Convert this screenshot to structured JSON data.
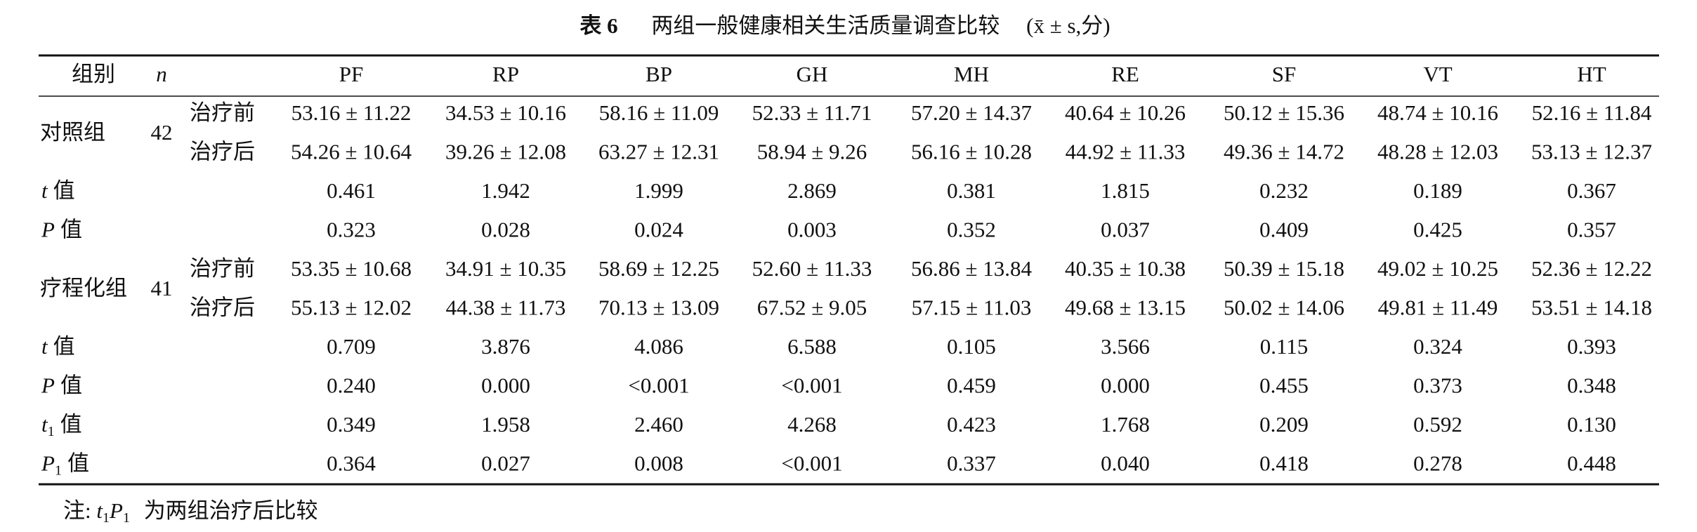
{
  "table": {
    "title": {
      "number": "表 6",
      "text": "两组一般健康相关生活质量调查比较",
      "unit": "(x̄ ± s,分)"
    },
    "header": {
      "group": "组别",
      "n": "n",
      "columns": [
        "PF",
        "RP",
        "BP",
        "GH",
        "MH",
        "RE",
        "SF",
        "VT",
        "HT"
      ]
    },
    "blocks": [
      {
        "group": "对照组",
        "n": 42,
        "rows": [
          {
            "label": "治疗前",
            "values": [
              "53.16 ± 11.22",
              "34.53 ± 10.16",
              "58.16 ± 11.09",
              "52.33 ± 11.71",
              "57.20 ± 14.37",
              "40.64 ± 10.26",
              "50.12 ± 15.36",
              "48.74 ± 10.16",
              "52.16 ± 11.84"
            ]
          },
          {
            "label": "治疗后",
            "values": [
              "54.26 ± 10.64",
              "39.26 ± 12.08",
              "63.27 ± 12.31",
              "58.94 ± 9.26",
              "56.16 ± 10.28",
              "44.92 ± 11.33",
              "49.36 ± 14.72",
              "48.28 ± 12.03",
              "53.13 ± 12.37"
            ]
          }
        ]
      },
      {
        "label": {
          "sym": "t",
          "text": "值"
        },
        "values": [
          "0.461",
          "1.942",
          "1.999",
          "2.869",
          "0.381",
          "1.815",
          "0.232",
          "0.189",
          "0.367"
        ]
      },
      {
        "label": {
          "sym": "P",
          "text": "值"
        },
        "values": [
          "0.323",
          "0.028",
          "0.024",
          "0.003",
          "0.352",
          "0.037",
          "0.409",
          "0.425",
          "0.357"
        ]
      },
      {
        "group": "疗程化组",
        "n": 41,
        "rows": [
          {
            "label": "治疗前",
            "values": [
              "53.35 ± 10.68",
              "34.91 ± 10.35",
              "58.69 ± 12.25",
              "52.60 ± 11.33",
              "56.86 ± 13.84",
              "40.35 ± 10.38",
              "50.39 ± 15.18",
              "49.02 ± 10.25",
              "52.36 ± 12.22"
            ]
          },
          {
            "label": "治疗后",
            "values": [
              "55.13 ± 12.02",
              "44.38 ± 11.73",
              "70.13 ± 13.09",
              "67.52 ± 9.05",
              "57.15 ± 11.03",
              "49.68 ± 13.15",
              "50.02 ± 14.06",
              "49.81 ± 11.49",
              "53.51 ± 14.18"
            ]
          }
        ]
      },
      {
        "label": {
          "sym": "t",
          "text": "值"
        },
        "values": [
          "0.709",
          "3.876",
          "4.086",
          "6.588",
          "0.105",
          "3.566",
          "0.115",
          "0.324",
          "0.393"
        ]
      },
      {
        "label": {
          "sym": "P",
          "text": "值"
        },
        "values": [
          "0.240",
          "0.000",
          "<0.001",
          "<0.001",
          "0.459",
          "0.000",
          "0.455",
          "0.373",
          "0.348"
        ]
      },
      {
        "label": {
          "sym": "t",
          "sub": "1",
          "text": "值"
        },
        "values": [
          "0.349",
          "1.958",
          "2.460",
          "4.268",
          "0.423",
          "1.768",
          "0.209",
          "0.592",
          "0.130"
        ]
      },
      {
        "label": {
          "sym": "P",
          "sub": "1",
          "text": "值"
        },
        "values": [
          "0.364",
          "0.027",
          "0.008",
          "<0.001",
          "0.337",
          "0.040",
          "0.418",
          "0.278",
          "0.448"
        ]
      }
    ]
  },
  "note": {
    "prefix": "注:",
    "t": "t",
    "t_sub": "1",
    "p": "P",
    "p_sub": "1",
    "text": "为两组治疗后比较"
  }
}
